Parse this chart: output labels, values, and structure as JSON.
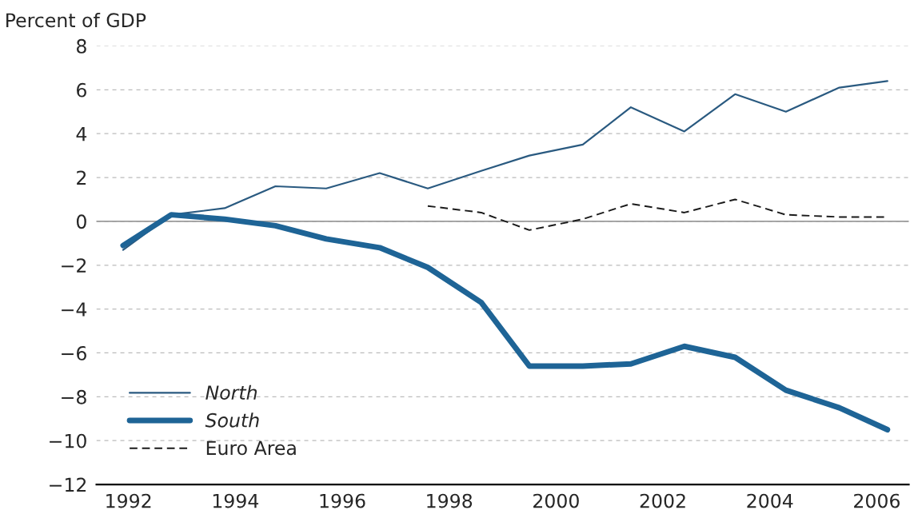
{
  "chart_data": {
    "type": "line",
    "ylabel": "Percent of GDP",
    "xlim": [
      1991.4,
      2006.6
    ],
    "xticks": [
      1992,
      1994,
      1996,
      1998,
      2000,
      2002,
      2004,
      2006
    ],
    "ylim": [
      -12,
      8
    ],
    "yticks": [
      -12,
      -10,
      -8,
      -6,
      -4,
      -2,
      0,
      2,
      4,
      6,
      8
    ],
    "grid": "y",
    "legend": "bottom left",
    "ref_lines": [
      {
        "axis": "y",
        "value": 0,
        "color": "#9a9a9a",
        "line_style": "solid"
      }
    ],
    "series": [
      {
        "name": "North",
        "color": "#2a5a80",
        "line_style": "solid",
        "x": [
          1991.9,
          1992.8,
          1993.8,
          1994.75,
          1995.7,
          1996.7,
          1997.6,
          1998.6,
          1999.5,
          2000.5,
          2001.4,
          2002.4,
          2003.35,
          2004.3,
          2005.3,
          2006.2
        ],
        "values": [
          -1.3,
          0.3,
          0.6,
          1.6,
          1.5,
          2.2,
          1.5,
          2.3,
          3.0,
          3.5,
          5.2,
          4.1,
          5.8,
          5.0,
          6.1,
          6.4
        ]
      },
      {
        "name": "South",
        "color": "#1e6496",
        "line_style": "solid",
        "x": [
          1991.9,
          1992.8,
          1993.8,
          1994.75,
          1995.7,
          1996.7,
          1997.6,
          1998.6,
          1999.5,
          2000.5,
          2001.4,
          2002.4,
          2003.35,
          2004.3,
          2005.3,
          2006.2
        ],
        "values": [
          -1.1,
          0.3,
          0.1,
          -0.2,
          -0.8,
          -1.2,
          -2.1,
          -3.7,
          -6.6,
          -6.6,
          -6.5,
          -5.7,
          -6.2,
          -7.7,
          -8.5,
          -9.5
        ]
      },
      {
        "name": "Euro Area",
        "color": "#1a1a1a",
        "line_style": "dashed",
        "x": [
          1997.6,
          1998.6,
          1999.5,
          2000.5,
          2001.4,
          2002.4,
          2003.35,
          2004.3,
          2005.3,
          2006.2
        ],
        "values": [
          0.7,
          0.4,
          -0.4,
          0.1,
          0.8,
          0.4,
          1.0,
          0.3,
          0.2,
          0.2
        ]
      }
    ]
  }
}
